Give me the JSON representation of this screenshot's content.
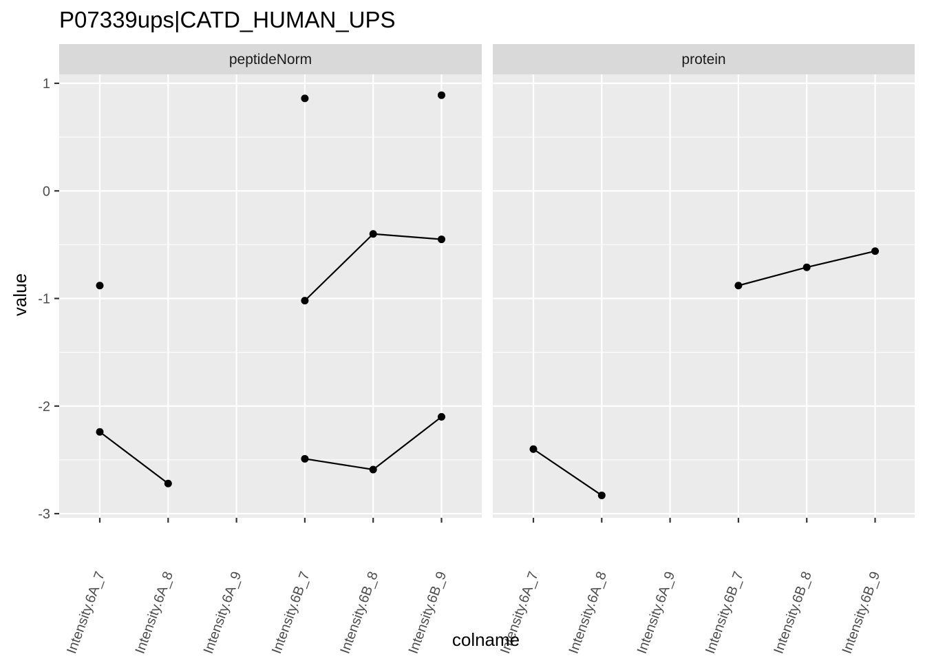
{
  "chart_data": {
    "type": "line",
    "title": "P07339ups|CATD_HUMAN_UPS",
    "xlabel": "colname",
    "ylabel": "value",
    "ylim": [
      -3.0,
      1.05
    ],
    "yticks": [
      1,
      0,
      -1,
      -2,
      -3
    ],
    "ytick_labels": [
      "1",
      "0",
      "-1",
      "-2",
      "-3"
    ],
    "categories": [
      "Intensity.6A_7",
      "Intensity.6A_8",
      "Intensity.6A_9",
      "Intensity.6B_7",
      "Intensity.6B_8",
      "Intensity.6B_9"
    ],
    "grid": true,
    "panels": [
      {
        "label": "peptideNorm",
        "series": [
          {
            "values": [
              -0.88,
              null,
              null,
              0.86,
              null,
              0.89
            ]
          },
          {
            "values": [
              null,
              null,
              null,
              -1.02,
              -0.4,
              -0.45
            ]
          },
          {
            "values": [
              -2.24,
              -2.72,
              null,
              -2.49,
              -2.59,
              -2.1
            ]
          }
        ]
      },
      {
        "label": "protein",
        "series": [
          {
            "values": [
              -2.4,
              -2.83,
              null,
              null,
              null,
              null
            ]
          },
          {
            "values": [
              null,
              null,
              null,
              -0.88,
              -0.71,
              -0.56
            ]
          }
        ]
      }
    ],
    "colors": {
      "panel_bg": "#ebebeb",
      "strip_bg": "#d9d9d9",
      "grid": "#ffffff",
      "point": "#000000",
      "line": "#000000",
      "tick": "#333333"
    }
  }
}
